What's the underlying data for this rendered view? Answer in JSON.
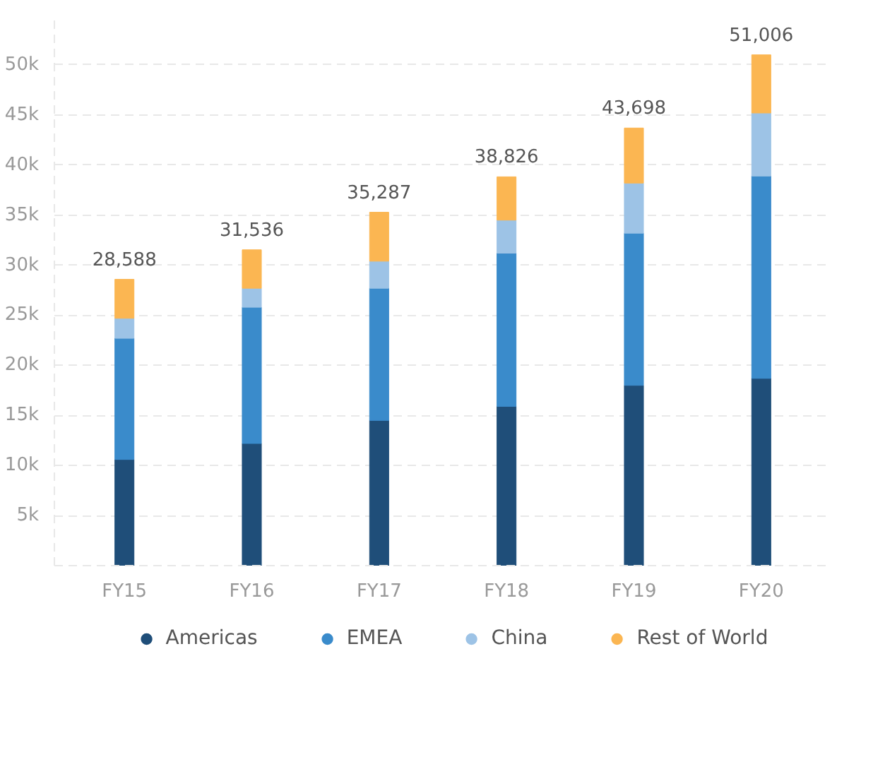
{
  "chart_data": {
    "type": "bar",
    "stacked": true,
    "categories": [
      "FY15",
      "FY16",
      "FY17",
      "FY18",
      "FY19",
      "FY20"
    ],
    "series": [
      {
        "name": "Americas",
        "color": "#1f4e79",
        "values": [
          10.6,
          12.2,
          14.5,
          15.9,
          18.0,
          18.7
        ]
      },
      {
        "name": "EMEA",
        "color": "#3a8bcb",
        "values": [
          12.1,
          13.6,
          13.2,
          15.3,
          15.2,
          20.2
        ]
      },
      {
        "name": "China",
        "color": "#9dc3e6",
        "values": [
          2.0,
          1.9,
          2.7,
          3.3,
          5.0,
          6.3
        ]
      },
      {
        "name": "Rest of World",
        "color": "#fbb652",
        "values": [
          3.888,
          3.836,
          4.887,
          4.326,
          5.498,
          5.806
        ]
      }
    ],
    "totals": [
      "28,588",
      "31,536",
      "35,287",
      "38,826",
      "43,698",
      "51,006"
    ],
    "ylim": [
      0,
      55
    ],
    "yticks": [
      {
        "value": 5,
        "label": "5k"
      },
      {
        "value": 10,
        "label": "10k"
      },
      {
        "value": 15,
        "label": "15k"
      },
      {
        "value": 20,
        "label": "20k"
      },
      {
        "value": 25,
        "label": "25k"
      },
      {
        "value": 30,
        "label": "30k"
      },
      {
        "value": 35,
        "label": "35k"
      },
      {
        "value": 40,
        "label": "40k"
      },
      {
        "value": 45,
        "label": "45k"
      },
      {
        "value": 50,
        "label": "50k"
      }
    ],
    "grid": "y",
    "legend": "bottom"
  }
}
